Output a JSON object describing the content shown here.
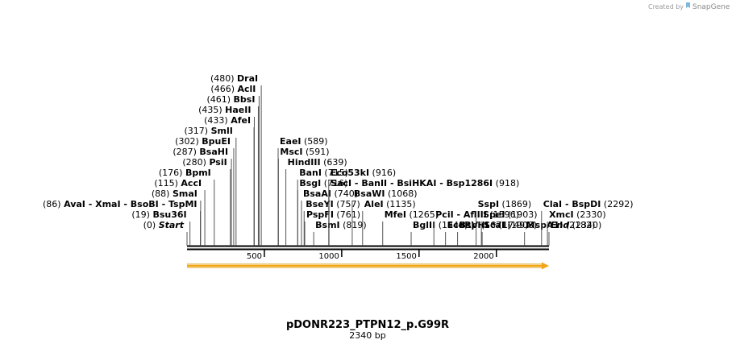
{
  "credit": {
    "prefix": "Created by",
    "brand": "SnapGene"
  },
  "map": {
    "name": "pDONR223_PTPN12_p.G99R",
    "length_label": "2340 bp",
    "length": 2340,
    "feature_color": "#f2a516"
  },
  "ticks": [
    {
      "value": 500,
      "label": "500"
    },
    {
      "value": 1000,
      "label": "1000"
    },
    {
      "value": 1500,
      "label": "1500"
    },
    {
      "value": 2000,
      "label": "2000"
    }
  ],
  "left_labels": [
    {
      "pos": 0,
      "text": "(0)",
      "name": "Start",
      "italic": true
    },
    {
      "pos": 19,
      "text": "(19)",
      "name": "Bsu36I"
    },
    {
      "pos": 86,
      "text": "(86)",
      "name": "AvaI   - XmaI   - BsoBI   - TspMI"
    },
    {
      "pos": 88,
      "text": "(88)",
      "name": "SmaI"
    },
    {
      "pos": 115,
      "text": "(115)",
      "name": "AccI"
    },
    {
      "pos": 176,
      "text": "(176)",
      "name": "BpmI"
    },
    {
      "pos": 280,
      "text": "(280)",
      "name": "PsiI"
    },
    {
      "pos": 287,
      "text": "(287)",
      "name": "BsaHI"
    },
    {
      "pos": 302,
      "text": "(302)",
      "name": "BpuEI"
    },
    {
      "pos": 317,
      "text": "(317)",
      "name": "SmlI"
    },
    {
      "pos": 433,
      "text": "(433)",
      "name": "AfeI"
    },
    {
      "pos": 435,
      "text": "(435)",
      "name": "HaeII"
    },
    {
      "pos": 461,
      "text": "(461)",
      "name": "BbsI"
    },
    {
      "pos": 466,
      "text": "(466)",
      "name": "AclI"
    },
    {
      "pos": 480,
      "text": "(480)",
      "name": "DraI"
    }
  ],
  "right_labels": [
    {
      "pos": 589,
      "name": "EaeI",
      "text": "(589)"
    },
    {
      "pos": 591,
      "name": "MscI",
      "text": "(591)"
    },
    {
      "pos": 639,
      "name": "HindIII",
      "text": "(639)"
    },
    {
      "pos": 715,
      "name": "BanI",
      "text": "(715)"
    },
    {
      "pos": 716,
      "name": "BsgI",
      "text": "(716)"
    },
    {
      "pos": 740,
      "name": "BsaAI",
      "text": "(740)"
    },
    {
      "pos": 757,
      "name": "BseYI",
      "text": "(757)"
    },
    {
      "pos": 761,
      "name": "PspFI",
      "text": "(761)"
    },
    {
      "pos": 819,
      "name": "BsmI",
      "text": "(819)"
    },
    {
      "pos": 916,
      "name": "Eco53kI",
      "text": "(916)"
    },
    {
      "pos": 918,
      "name": "SacI   - BanII   - BsiHKAI   - Bsp1286I",
      "text": "(918)"
    },
    {
      "pos": 1068,
      "name": "BsaWI",
      "text": "(1068)"
    },
    {
      "pos": 1135,
      "name": "AleI",
      "text": "(1135)"
    },
    {
      "pos": 1265,
      "name": "MfeI",
      "text": "(1265)"
    },
    {
      "pos": 1449,
      "name": "BglII",
      "text": "(1449)"
    },
    {
      "pos": 1596,
      "name": "PciI   - AflIII",
      "text": "(1596)"
    },
    {
      "pos": 1671,
      "name": "EcoRV",
      "text": "(1671)"
    },
    {
      "pos": 1749,
      "name": "BspHI *",
      "text": "(1749)"
    },
    {
      "pos": 1869,
      "name": "SspI",
      "text": "(1869)"
    },
    {
      "pos": 1903,
      "name": "SpeI",
      "text": "(1903)"
    },
    {
      "pos": 1908,
      "name": "ScaI",
      "text": "(1908)"
    },
    {
      "pos": 2182,
      "name": "MspA1I",
      "text": "(2182)"
    },
    {
      "pos": 2292,
      "name": "ClaI   - BspDI",
      "text": "(2292)"
    },
    {
      "pos": 2330,
      "name": "XmcI",
      "text": "(2330)"
    },
    {
      "pos": 2340,
      "name": "End",
      "text": "(2340)",
      "italic": true
    }
  ]
}
